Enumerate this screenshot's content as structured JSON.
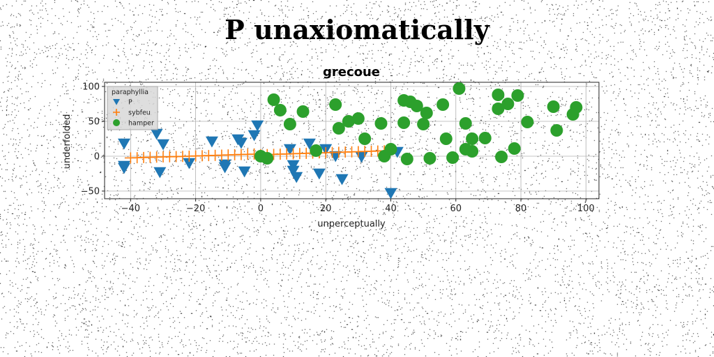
{
  "suptitle": "P unaxiomatically",
  "colors": {
    "P": "#1f77b4",
    "sybfeu": "#ff7f0e",
    "hamper": "#2ca02c",
    "grid": "#b0b0b0"
  },
  "chart_data": {
    "type": "scatter",
    "title": "grecoue",
    "xlabel": "unperceptually",
    "ylabel": "underfolded",
    "xlim": [
      -48,
      104
    ],
    "ylim": [
      -61,
      106
    ],
    "xticks": [
      -40,
      -20,
      0,
      20,
      40,
      60,
      80,
      100
    ],
    "yticks": [
      -50,
      0,
      50,
      100
    ],
    "xtick_labels": [
      "−40",
      "−20",
      "0",
      "20",
      "40",
      "60",
      "80",
      "100"
    ],
    "ytick_labels": [
      "−50",
      "0",
      "50",
      "100"
    ],
    "grid": true,
    "legend": {
      "title": "paraphyllia",
      "placement": "top-left"
    },
    "series": [
      {
        "name": "P",
        "marker": "triangle-down",
        "points": [
          [
            -42,
            18
          ],
          [
            -42,
            -14
          ],
          [
            -42,
            -17
          ],
          [
            -32,
            32
          ],
          [
            -30,
            17
          ],
          [
            -31,
            -23
          ],
          [
            -22,
            -10
          ],
          [
            -15,
            21
          ],
          [
            -11,
            -12
          ],
          [
            -11,
            -16
          ],
          [
            -7,
            24
          ],
          [
            -6,
            19
          ],
          [
            -5,
            -22
          ],
          [
            -2,
            30
          ],
          [
            -1,
            44
          ],
          [
            1,
            -3
          ],
          [
            9,
            10
          ],
          [
            10,
            -13
          ],
          [
            10,
            -21
          ],
          [
            11,
            -30
          ],
          [
            15,
            18
          ],
          [
            18,
            -25
          ],
          [
            20,
            10
          ],
          [
            23,
            0
          ],
          [
            25,
            -33
          ],
          [
            31,
            -1
          ],
          [
            40,
            -53
          ],
          [
            42,
            6
          ]
        ]
      },
      {
        "name": "sybfeu",
        "marker": "plus",
        "points": [
          [
            -40,
            -2.5
          ],
          [
            -38,
            -2.2
          ],
          [
            -36,
            -1.9
          ],
          [
            -34,
            -1.6
          ],
          [
            -32,
            -1.3
          ],
          [
            -30,
            -1
          ],
          [
            -28,
            -0.8
          ],
          [
            -26,
            -0.6
          ],
          [
            -24,
            -0.3
          ],
          [
            -22,
            0
          ],
          [
            -20,
            0.3
          ],
          [
            -18,
            0.6
          ],
          [
            -16,
            0.9
          ],
          [
            -14,
            1.2
          ],
          [
            -12,
            1.5
          ],
          [
            -10,
            1.8
          ],
          [
            -8,
            2.1
          ],
          [
            -6,
            2.4
          ],
          [
            -4,
            2.7
          ],
          [
            -2,
            3
          ],
          [
            0,
            2
          ],
          [
            2,
            2.3
          ],
          [
            4,
            2.6
          ],
          [
            6,
            2.9
          ],
          [
            8,
            3.2
          ],
          [
            10,
            3.5
          ],
          [
            12,
            3.8
          ],
          [
            14,
            4.1
          ],
          [
            16,
            4.4
          ],
          [
            18,
            4.7
          ],
          [
            20,
            5
          ],
          [
            22,
            5.3
          ],
          [
            24,
            5.6
          ],
          [
            26,
            5.9
          ],
          [
            28,
            6.2
          ],
          [
            30,
            6.5
          ],
          [
            32,
            6.8
          ],
          [
            34,
            7.1
          ],
          [
            36,
            7.4
          ],
          [
            38,
            7.7
          ]
        ]
      },
      {
        "name": "hamper",
        "marker": "circle",
        "points": [
          [
            0,
            0
          ],
          [
            2,
            -3
          ],
          [
            4,
            81
          ],
          [
            6,
            66
          ],
          [
            9,
            46
          ],
          [
            13,
            64
          ],
          [
            17,
            8
          ],
          [
            23,
            74
          ],
          [
            24,
            40
          ],
          [
            27,
            50
          ],
          [
            30,
            54
          ],
          [
            32,
            25
          ],
          [
            37,
            47
          ],
          [
            38,
            0
          ],
          [
            40,
            10
          ],
          [
            44,
            80
          ],
          [
            44,
            48
          ],
          [
            45,
            -4
          ],
          [
            46,
            78
          ],
          [
            48,
            72
          ],
          [
            50,
            46
          ],
          [
            51,
            62
          ],
          [
            52,
            -3
          ],
          [
            56,
            74
          ],
          [
            57,
            25
          ],
          [
            59,
            -2
          ],
          [
            61,
            97
          ],
          [
            63,
            47
          ],
          [
            63,
            10
          ],
          [
            65,
            25
          ],
          [
            65,
            7
          ],
          [
            69,
            26
          ],
          [
            73,
            88
          ],
          [
            73,
            68
          ],
          [
            74,
            -1
          ],
          [
            76,
            75
          ],
          [
            78,
            11
          ],
          [
            79,
            87
          ],
          [
            82,
            49
          ],
          [
            90,
            71
          ],
          [
            91,
            37
          ],
          [
            96,
            60
          ],
          [
            97,
            70
          ]
        ]
      }
    ]
  }
}
